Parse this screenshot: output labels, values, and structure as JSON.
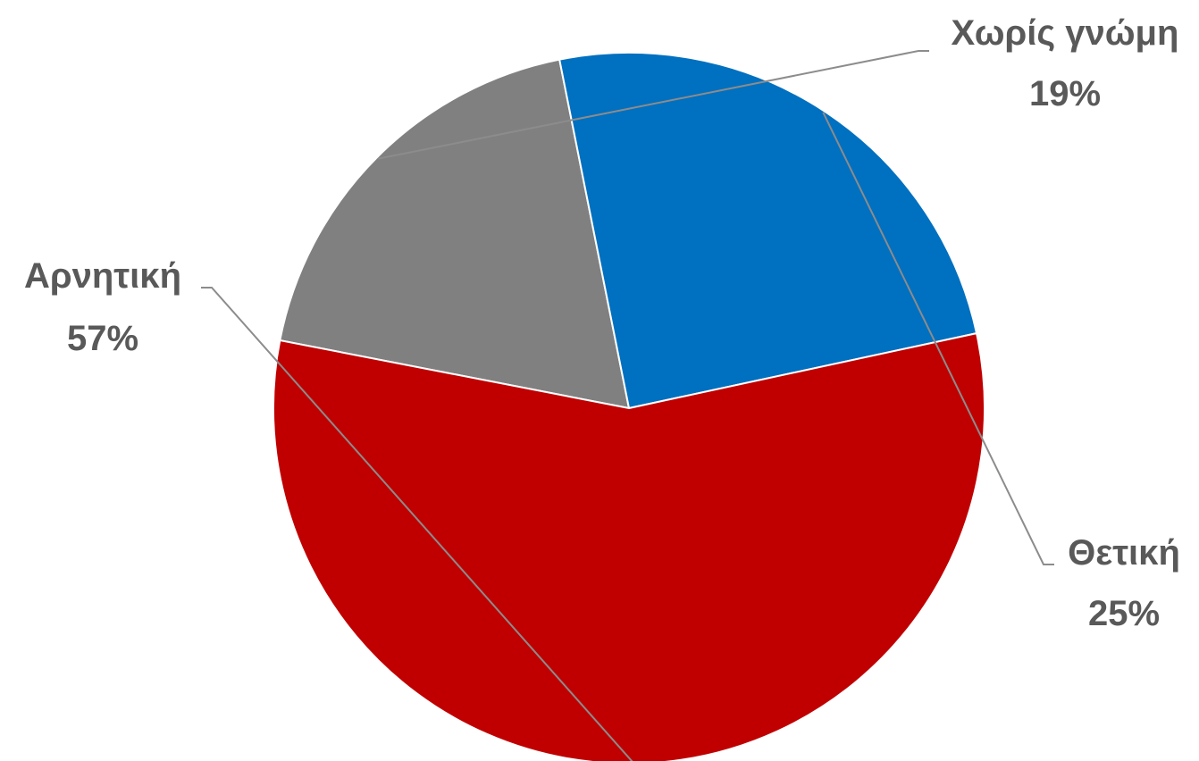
{
  "chart_data": {
    "type": "pie",
    "title": "",
    "slices": [
      {
        "label": "Χωρίς γνώμη",
        "value": 19,
        "value_label": "19%",
        "color": "#808080"
      },
      {
        "label": "Θετική",
        "value": 25,
        "value_label": "25%",
        "color": "#0070C0"
      },
      {
        "label": "Αρνητική",
        "value": 57,
        "value_label": "57%",
        "color": "#C00000"
      }
    ],
    "start_direction": "about 11 o'clock, slices clockwise",
    "legend": "none, labels with leader lines outside the pie"
  }
}
